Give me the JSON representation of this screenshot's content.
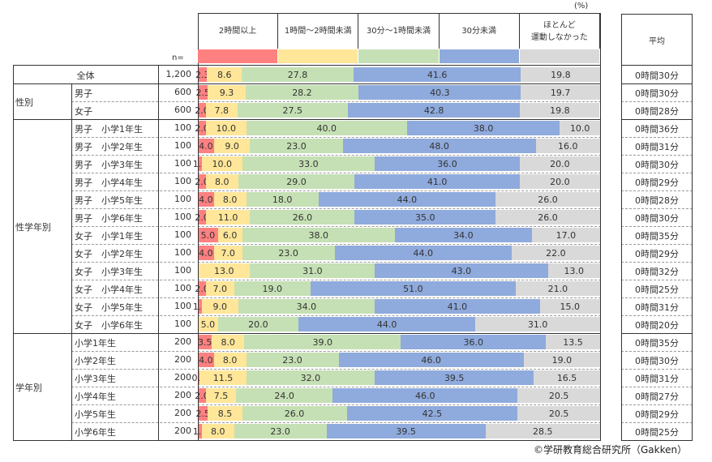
{
  "unit_label": "(%)",
  "n_label": "n=",
  "average_header": "平均",
  "copyright": "©学研教育総合研究所（Gakken）",
  "chart_data": {
    "type": "bar",
    "stacked": true,
    "orientation": "horizontal",
    "xlim": [
      0,
      100
    ],
    "series": [
      {
        "name": "2時間以上",
        "color": "#ff8080"
      },
      {
        "name": "1時間～2時間未満",
        "color": "#ffe699"
      },
      {
        "name": "30分～1時間未満",
        "color": "#c5e0b4"
      },
      {
        "name": "30分未満",
        "color": "#8faadc"
      },
      {
        "name": "ほとんど\n運動しなかった",
        "color": "#d9d9d9"
      }
    ],
    "groups": [
      {
        "name": "全体",
        "rows": [
          0
        ]
      },
      {
        "name": "性別",
        "rows": [
          1,
          2
        ]
      },
      {
        "name": "性学年別",
        "rows": [
          3,
          4,
          5,
          6,
          7,
          8,
          9,
          10,
          11,
          12,
          13,
          14
        ]
      },
      {
        "name": "学年別",
        "rows": [
          15,
          16,
          17,
          18,
          19,
          20
        ]
      }
    ],
    "rows": [
      {
        "label": "全体",
        "n": "1,200",
        "values": [
          2.3,
          8.6,
          27.8,
          41.6,
          19.8
        ],
        "avg": "0時間30分"
      },
      {
        "label": "男子",
        "n": "600",
        "values": [
          2.5,
          9.3,
          28.2,
          40.3,
          19.7
        ],
        "avg": "0時間30分"
      },
      {
        "label": "女子",
        "n": "600",
        "values": [
          2.0,
          7.8,
          27.5,
          42.8,
          19.8
        ],
        "avg": "0時間28分"
      },
      {
        "label": "男子　小学1年生",
        "n": "100",
        "values": [
          2.0,
          10.0,
          40.0,
          38.0,
          10.0
        ],
        "avg": "0時間36分"
      },
      {
        "label": "男子　小学2年生",
        "n": "100",
        "values": [
          4.0,
          9.0,
          23.0,
          48.0,
          16.0
        ],
        "avg": "0時間31分"
      },
      {
        "label": "男子　小学3年生",
        "n": "100",
        "values": [
          1.0,
          10.0,
          33.0,
          36.0,
          20.0
        ],
        "avg": "0時間30分"
      },
      {
        "label": "男子　小学4年生",
        "n": "100",
        "values": [
          2.0,
          8.0,
          29.0,
          41.0,
          20.0
        ],
        "avg": "0時間29分"
      },
      {
        "label": "男子　小学5年生",
        "n": "100",
        "values": [
          4.0,
          8.0,
          18.0,
          44.0,
          26.0
        ],
        "avg": "0時間28分"
      },
      {
        "label": "男子　小学6年生",
        "n": "100",
        "values": [
          2.0,
          11.0,
          26.0,
          35.0,
          26.0
        ],
        "avg": "0時間30分"
      },
      {
        "label": "女子　小学1年生",
        "n": "100",
        "values": [
          5.0,
          6.0,
          38.0,
          34.0,
          17.0
        ],
        "avg": "0時間35分"
      },
      {
        "label": "女子　小学2年生",
        "n": "100",
        "values": [
          4.0,
          7.0,
          23.0,
          44.0,
          22.0
        ],
        "avg": "0時間29分"
      },
      {
        "label": "女子　小学3年生",
        "n": "100",
        "values": [
          0,
          13.0,
          31.0,
          43.0,
          13.0
        ],
        "avg": "0時間32分"
      },
      {
        "label": "女子　小学4年生",
        "n": "100",
        "values": [
          2.0,
          7.0,
          19.0,
          51.0,
          21.0
        ],
        "avg": "0時間25分"
      },
      {
        "label": "女子　小学5年生",
        "n": "100",
        "values": [
          1.0,
          9.0,
          34.0,
          41.0,
          15.0
        ],
        "avg": "0時間31分"
      },
      {
        "label": "女子　小学6年生",
        "n": "100",
        "values": [
          0,
          5.0,
          20.0,
          44.0,
          31.0
        ],
        "avg": "0時間20分"
      },
      {
        "label": "小学1年生",
        "n": "200",
        "values": [
          3.5,
          8.0,
          39.0,
          36.0,
          13.5
        ],
        "avg": "0時間35分"
      },
      {
        "label": "小学2年生",
        "n": "200",
        "values": [
          4.0,
          8.0,
          23.0,
          46.0,
          19.0
        ],
        "avg": "0時間30分"
      },
      {
        "label": "小学3年生",
        "n": "200",
        "values": [
          0.5,
          11.5,
          32.0,
          39.5,
          16.5
        ],
        "avg": "0時間31分"
      },
      {
        "label": "小学4年生",
        "n": "200",
        "values": [
          2.0,
          7.5,
          24.0,
          46.0,
          20.5
        ],
        "avg": "0時間27分"
      },
      {
        "label": "小学5年生",
        "n": "200",
        "values": [
          2.5,
          8.5,
          26.0,
          42.5,
          20.5
        ],
        "avg": "0時間29分"
      },
      {
        "label": "小学6年生",
        "n": "200",
        "values": [
          1.0,
          8.0,
          23.0,
          39.5,
          28.5
        ],
        "avg": "0時間25分"
      }
    ]
  }
}
